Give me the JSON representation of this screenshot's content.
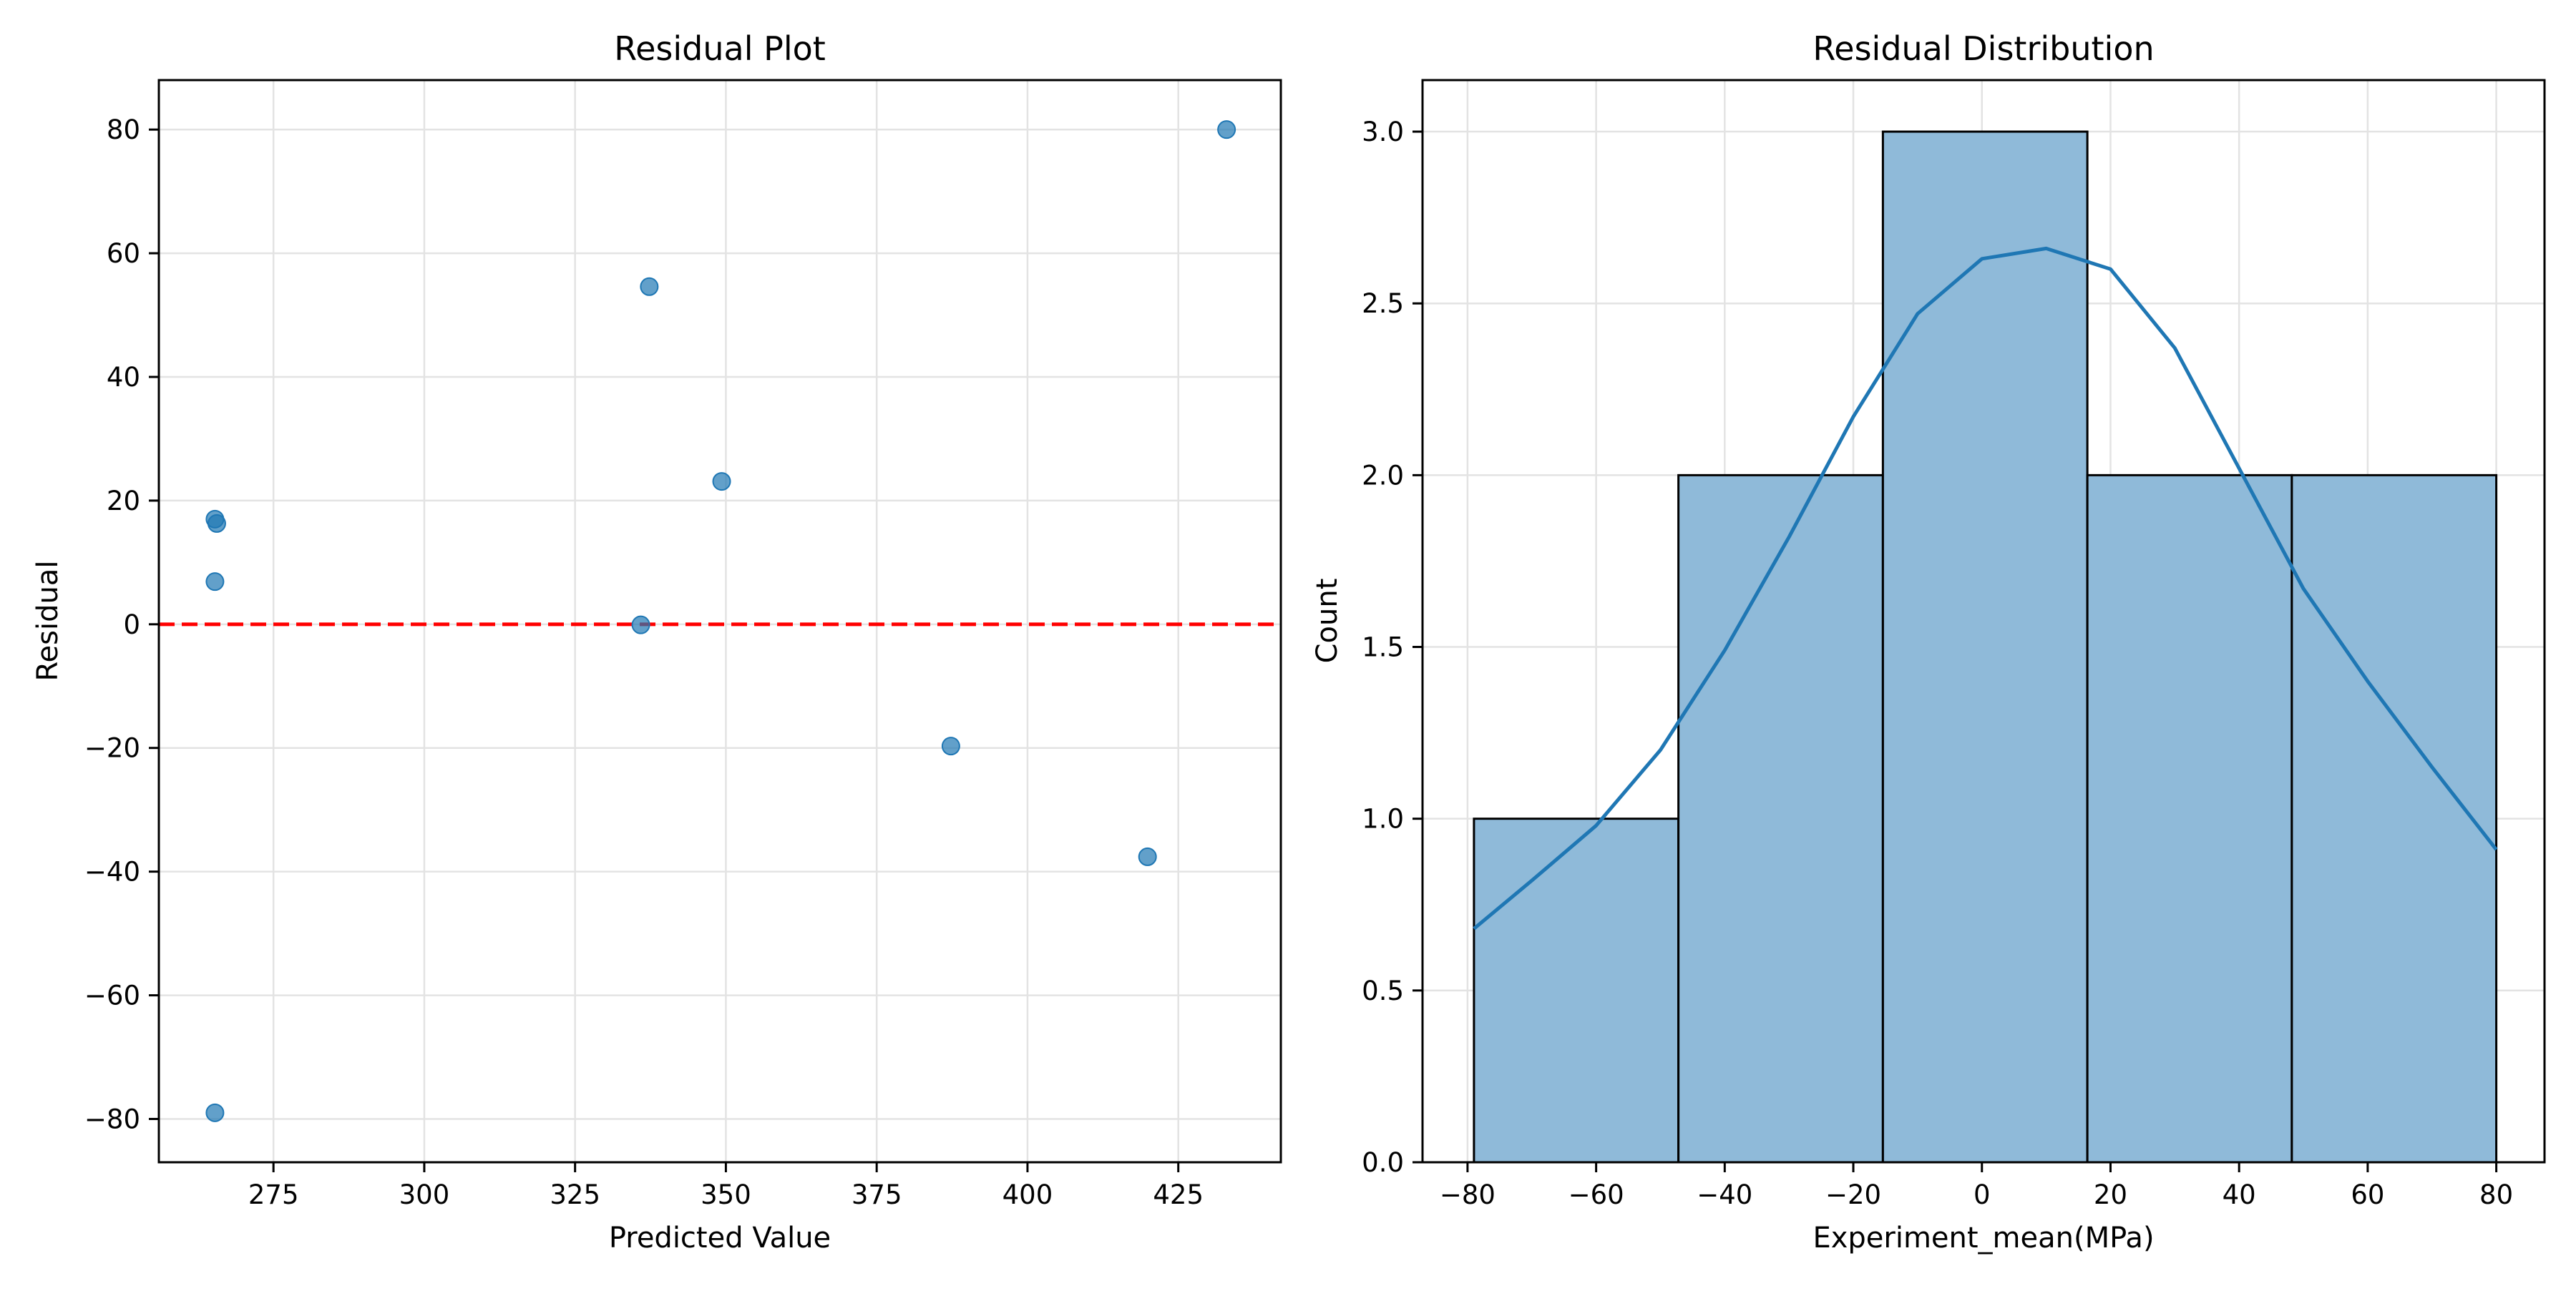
{
  "chart_data": [
    {
      "type": "scatter",
      "title": "Residual Plot",
      "xlabel": "Predicted Value",
      "ylabel": "Residual",
      "xlim": [
        256,
        442
      ],
      "ylim": [
        -87,
        88
      ],
      "xticks": [
        275,
        300,
        325,
        350,
        375,
        400,
        425
      ],
      "yticks": [
        -80,
        -60,
        -40,
        -20,
        0,
        20,
        40,
        60,
        80
      ],
      "grid": true,
      "points": [
        {
          "x": 265.3,
          "y": 17.0
        },
        {
          "x": 265.6,
          "y": 16.3
        },
        {
          "x": 265.3,
          "y": 6.9
        },
        {
          "x": 265.3,
          "y": -79.0
        },
        {
          "x": 337.3,
          "y": 54.6
        },
        {
          "x": 349.3,
          "y": 23.1
        },
        {
          "x": 335.9,
          "y": -0.1
        },
        {
          "x": 387.3,
          "y": -19.7
        },
        {
          "x": 419.9,
          "y": -37.6
        },
        {
          "x": 433.0,
          "y": 80.0
        }
      ],
      "point_color": "#1f77b4",
      "zero_line": {
        "y": 0,
        "color": "#ff0000",
        "style": "dashed"
      }
    },
    {
      "type": "bar",
      "title": "Residual Distribution",
      "xlabel": "Experiment_mean(MPa)",
      "ylabel": "Count",
      "xlim": [
        -87,
        87.5
      ],
      "ylim": [
        0,
        3.15
      ],
      "xticks": [
        -80,
        -60,
        -40,
        -20,
        0,
        20,
        40,
        60,
        80
      ],
      "yticks": [
        0.0,
        0.5,
        1.0,
        1.5,
        2.0,
        2.5,
        3.0
      ],
      "ytick_format": 1,
      "grid": true,
      "bins": [
        {
          "x0": -79.0,
          "x1": -47.2,
          "count": 1
        },
        {
          "x0": -47.2,
          "x1": -15.4,
          "count": 2
        },
        {
          "x0": -15.4,
          "x1": 16.4,
          "count": 3
        },
        {
          "x0": 16.4,
          "x1": 48.2,
          "count": 2
        },
        {
          "x0": 48.2,
          "x1": 80.0,
          "count": 2
        }
      ],
      "bar_color": "#8fbad9",
      "kde": {
        "color": "#1f77b4",
        "x": [
          -79,
          -70,
          -60,
          -50,
          -40,
          -30,
          -20,
          -10,
          0,
          10,
          20,
          30,
          40,
          50,
          60,
          70,
          80
        ],
        "y": [
          0.68,
          0.82,
          0.98,
          1.2,
          1.49,
          1.82,
          2.17,
          2.47,
          2.63,
          2.66,
          2.6,
          2.37,
          2.02,
          1.67,
          1.4,
          1.15,
          0.91
        ]
      }
    }
  ]
}
